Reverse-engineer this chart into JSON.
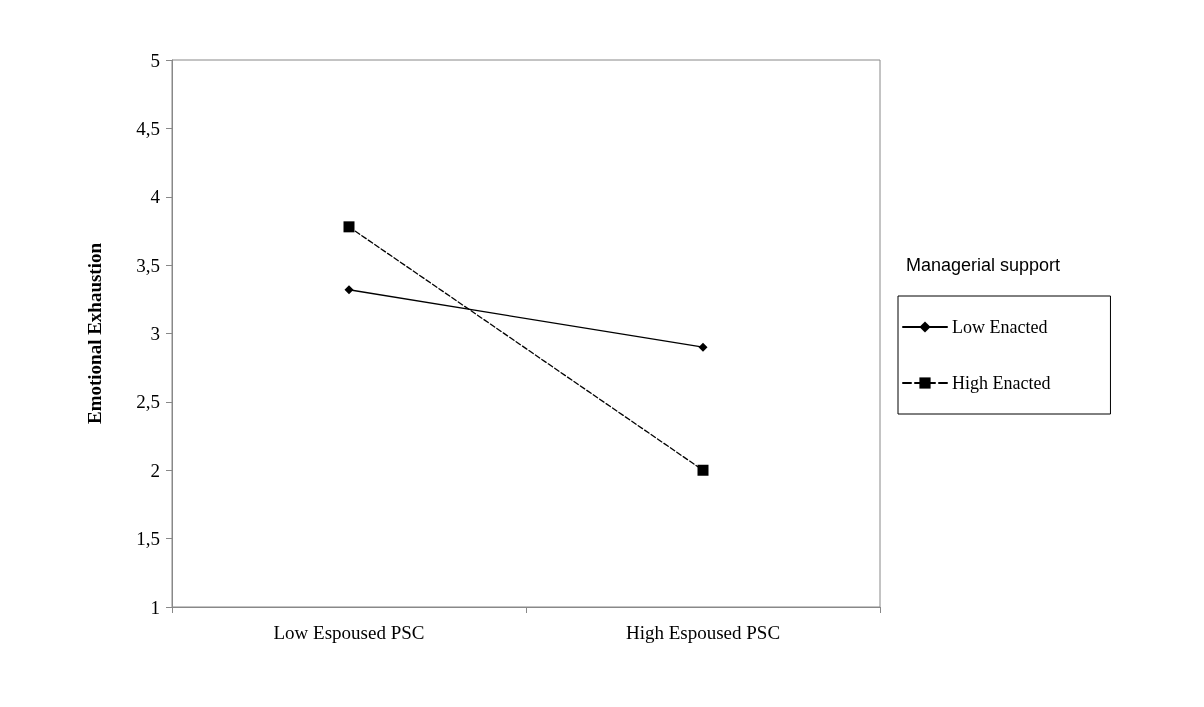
{
  "chart_data": {
    "type": "line",
    "ylabel": "Emotional Exhaustion",
    "legend_title": "Managerial support",
    "categories": [
      "Low Espoused PSC",
      "High Espoused PSC"
    ],
    "series": [
      {
        "name": "Low Enacted",
        "color": "#000000",
        "values": [
          3.32,
          2.9
        ],
        "marker": "diamond",
        "line_style": "solid"
      },
      {
        "name": "High Enacted",
        "color": "#000000",
        "values": [
          3.78,
          2.0
        ],
        "marker": "square",
        "line_style": "dashed"
      }
    ],
    "ylim": [
      1,
      5
    ],
    "yticks": [
      1,
      {
        "value": 1.5,
        "label": "1,5"
      },
      2,
      {
        "value": 2.5,
        "label": "2,5"
      },
      3,
      {
        "value": 3.5,
        "label": "3,5"
      },
      4,
      {
        "value": 4.5,
        "label": "4,5"
      },
      5
    ],
    "grid": false,
    "legend": "right"
  }
}
